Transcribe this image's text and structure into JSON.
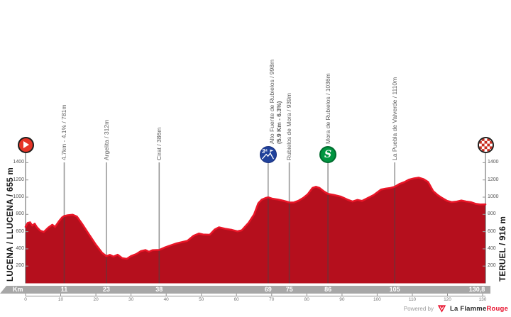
{
  "stage": {
    "start_label": "LUCENA / LLUCENA / 655 m",
    "finish_label": "TERUEL / 916 m"
  },
  "axis": {
    "km_unit": "Km",
    "y_ticks": [
      1400,
      1200,
      1000,
      800,
      600,
      400,
      200
    ],
    "x_ruler_ticks": [
      0,
      10,
      20,
      30,
      40,
      50,
      60,
      70,
      80,
      90,
      100,
      110,
      120,
      130
    ]
  },
  "waypoints": [
    {
      "km": 0,
      "icon": "start",
      "label": null,
      "band": null
    },
    {
      "km": 11,
      "icon": null,
      "label": "4.7km - 4.1% / 781m",
      "band": "11"
    },
    {
      "km": 23,
      "icon": null,
      "label": "Argelita / 312m",
      "band": "23"
    },
    {
      "km": 38,
      "icon": null,
      "label": "Cirat / 386m",
      "band": "38"
    },
    {
      "km": 69,
      "icon": "cat3",
      "icon_text": "3ª",
      "label": "Alto Fuente de Rubielos / 998m",
      "label_bold": "(5.9 Km - 6.3%)",
      "band": "69"
    },
    {
      "km": 75,
      "icon": null,
      "label": "Rubielos de Mora / 939m",
      "band": "75"
    },
    {
      "km": 86,
      "icon": "sprint",
      "icon_text": "S",
      "label": "Mora de Rubielos / 1036m",
      "band": "86"
    },
    {
      "km": 105,
      "icon": null,
      "label": "La Puebla de Valverde / 1110m",
      "band": "105"
    },
    {
      "km": 130.8,
      "icon": "finish",
      "label": null,
      "band": "130,8"
    }
  ],
  "footer": {
    "powered_by": "Powered by",
    "brand_regular": "La Flamme",
    "brand_accent": "Rouge"
  },
  "colors": {
    "profile_fill": "#b50f1d",
    "profile_stroke": "#ea1527",
    "waypoint_line": "rgba(70,70,70,0.55)",
    "band_gray": "#a7a7a7",
    "ruler_gray": "#909090",
    "start_icon_red": "#e63427",
    "finish_check_red": "#c92a1d",
    "cat_blue": "#20429b",
    "cat_blue_ring": "#1a2f7c",
    "sprint_green": "#009540",
    "sprint_green_ring": "#006b2e",
    "brand_red": "#e8112d"
  },
  "chart_data": {
    "type": "area",
    "x_unit": "km",
    "y_unit": "m",
    "x_range": [
      0,
      130.8
    ],
    "y_axis_ticks": [
      200,
      400,
      600,
      800,
      1000,
      1200,
      1400
    ],
    "start_point": {
      "name": "Lucena / Llucena",
      "elevation_m": 655
    },
    "finish_point": {
      "name": "Teruel",
      "elevation_m": 916,
      "km": 130.8
    },
    "marked_points": [
      {
        "km": 11,
        "label": "4.7km - 4.1% / 781m",
        "elevation_m": 781
      },
      {
        "km": 23,
        "label": "Argelita",
        "elevation_m": 312
      },
      {
        "km": 38,
        "label": "Cirat",
        "elevation_m": 386
      },
      {
        "km": 69,
        "label": "Alto Fuente de Rubielos",
        "elevation_m": 998,
        "climb": "5.9 Km - 6.3%",
        "category": "3"
      },
      {
        "km": 75,
        "label": "Rubielos de Mora",
        "elevation_m": 939
      },
      {
        "km": 86,
        "label": "Mora de Rubielos",
        "elevation_m": 1036,
        "sprint": true
      },
      {
        "km": 105,
        "label": "La Puebla de Valverde",
        "elevation_m": 1110
      }
    ],
    "points": [
      [
        0,
        655
      ],
      [
        0.6,
        700
      ],
      [
        1.3,
        708
      ],
      [
        1.9,
        670
      ],
      [
        2.6,
        692
      ],
      [
        3.2,
        652
      ],
      [
        4.2,
        610
      ],
      [
        5.2,
        596
      ],
      [
        6.5,
        648
      ],
      [
        7.6,
        680
      ],
      [
        8.4,
        655
      ],
      [
        9.5,
        720
      ],
      [
        10.4,
        765
      ],
      [
        11,
        781
      ],
      [
        12,
        790
      ],
      [
        13.4,
        796
      ],
      [
        14.6,
        775
      ],
      [
        16,
        695
      ],
      [
        18,
        570
      ],
      [
        20,
        448
      ],
      [
        21.8,
        352
      ],
      [
        23,
        315
      ],
      [
        24,
        330
      ],
      [
        25,
        310
      ],
      [
        26.2,
        332
      ],
      [
        27.5,
        292
      ],
      [
        28.8,
        284
      ],
      [
        30,
        316
      ],
      [
        31.5,
        340
      ],
      [
        32.8,
        374
      ],
      [
        34.1,
        386
      ],
      [
        35.1,
        366
      ],
      [
        36.1,
        384
      ],
      [
        38,
        388
      ],
      [
        39.4,
        412
      ],
      [
        40.8,
        434
      ],
      [
        43,
        464
      ],
      [
        46,
        492
      ],
      [
        47.8,
        552
      ],
      [
        49.3,
        578
      ],
      [
        50.5,
        566
      ],
      [
        52.4,
        564
      ],
      [
        53.8,
        625
      ],
      [
        55,
        650
      ],
      [
        56.7,
        634
      ],
      [
        58.7,
        620
      ],
      [
        60.3,
        603
      ],
      [
        61.5,
        615
      ],
      [
        62.5,
        660
      ],
      [
        63.4,
        700
      ],
      [
        65,
        800
      ],
      [
        66.2,
        930
      ],
      [
        67.2,
        972
      ],
      [
        68.4,
        992
      ],
      [
        69,
        998
      ],
      [
        70.2,
        982
      ],
      [
        71.8,
        972
      ],
      [
        73.2,
        960
      ],
      [
        74.2,
        948
      ],
      [
        75,
        939
      ],
      [
        76.3,
        938
      ],
      [
        77.6,
        958
      ],
      [
        79,
        992
      ],
      [
        80.3,
        1035
      ],
      [
        81.6,
        1107
      ],
      [
        82.6,
        1121
      ],
      [
        83.6,
        1107
      ],
      [
        84.9,
        1066
      ],
      [
        86,
        1038
      ],
      [
        87.6,
        1026
      ],
      [
        89.6,
        1007
      ],
      [
        91.6,
        970
      ],
      [
        93,
        950
      ],
      [
        94.4,
        968
      ],
      [
        95.7,
        956
      ],
      [
        97,
        983
      ],
      [
        99,
        1025
      ],
      [
        101.1,
        1088
      ],
      [
        102.5,
        1100
      ],
      [
        103.8,
        1107
      ],
      [
        105,
        1120
      ],
      [
        106.4,
        1154
      ],
      [
        107.8,
        1176
      ],
      [
        109.1,
        1204
      ],
      [
        110.5,
        1218
      ],
      [
        111.8,
        1226
      ],
      [
        113.2,
        1209
      ],
      [
        114.5,
        1176
      ],
      [
        115.9,
        1072
      ],
      [
        117.2,
        1025
      ],
      [
        118.5,
        989
      ],
      [
        119.9,
        956
      ],
      [
        121.2,
        942
      ],
      [
        122.6,
        948
      ],
      [
        123.9,
        961
      ],
      [
        125.3,
        950
      ],
      [
        126.6,
        942
      ],
      [
        128,
        923
      ],
      [
        129.3,
        915
      ],
      [
        130.8,
        916
      ]
    ]
  }
}
